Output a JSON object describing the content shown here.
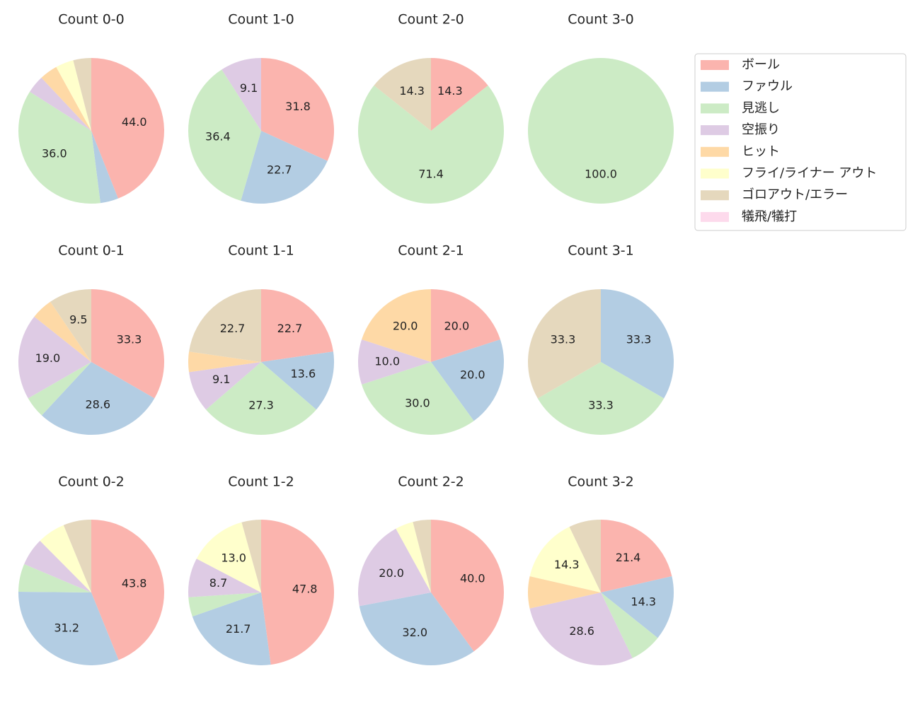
{
  "chart_data": [
    {
      "type": "pie",
      "title": "Count 0-0",
      "categories": [
        "ボール",
        "ファウル",
        "見逃し",
        "空振り",
        "ヒット",
        "フライ/ライナー アウト",
        "ゴロアウト/エラー",
        "犠飛/犠打"
      ],
      "colors": [
        "#fbb4ae",
        "#b3cde3",
        "#ccebc5",
        "#decbe4",
        "#fed9a6",
        "#ffffcc",
        "#e5d8bd",
        "#fddaec"
      ],
      "values": [
        44.0,
        4.0,
        36.0,
        4.0,
        4.0,
        4.0,
        4.0,
        0
      ],
      "value_labels": [
        "44.0",
        null,
        "36.0",
        null,
        null,
        null,
        null,
        null
      ]
    },
    {
      "type": "pie",
      "title": "Count 1-0",
      "categories": [
        "ボール",
        "ファウル",
        "見逃し",
        "空振り",
        "ヒット",
        "フライ/ライナー アウト",
        "ゴロアウト/エラー",
        "犠飛/犠打"
      ],
      "colors": [
        "#fbb4ae",
        "#b3cde3",
        "#ccebc5",
        "#decbe4",
        "#fed9a6",
        "#ffffcc",
        "#e5d8bd",
        "#fddaec"
      ],
      "values": [
        31.8,
        22.7,
        36.4,
        9.1,
        0,
        0,
        0,
        0
      ],
      "value_labels": [
        "31.8",
        "22.7",
        "36.4",
        "9.1",
        null,
        null,
        null,
        null
      ]
    },
    {
      "type": "pie",
      "title": "Count 2-0",
      "categories": [
        "ボール",
        "ファウル",
        "見逃し",
        "空振り",
        "ヒット",
        "フライ/ライナー アウト",
        "ゴロアウト/エラー",
        "犠飛/犠打"
      ],
      "colors": [
        "#fbb4ae",
        "#b3cde3",
        "#ccebc5",
        "#decbe4",
        "#fed9a6",
        "#ffffcc",
        "#e5d8bd",
        "#fddaec"
      ],
      "values": [
        14.3,
        0,
        71.4,
        0,
        0,
        0,
        14.3,
        0
      ],
      "value_labels": [
        "14.3",
        null,
        "71.4",
        null,
        null,
        null,
        "14.3",
        null
      ]
    },
    {
      "type": "pie",
      "title": "Count 3-0",
      "categories": [
        "ボール",
        "ファウル",
        "見逃し",
        "空振り",
        "ヒット",
        "フライ/ライナー アウト",
        "ゴロアウト/エラー",
        "犠飛/犠打"
      ],
      "colors": [
        "#fbb4ae",
        "#b3cde3",
        "#ccebc5",
        "#decbe4",
        "#fed9a6",
        "#ffffcc",
        "#e5d8bd",
        "#fddaec"
      ],
      "values": [
        0,
        0,
        100.0,
        0,
        0,
        0,
        0,
        0
      ],
      "value_labels": [
        null,
        null,
        "100.0",
        null,
        null,
        null,
        null,
        null
      ]
    },
    {
      "type": "pie",
      "title": "Count 0-1",
      "categories": [
        "ボール",
        "ファウル",
        "見逃し",
        "空振り",
        "ヒット",
        "フライ/ライナー アウト",
        "ゴロアウト/エラー",
        "犠飛/犠打"
      ],
      "colors": [
        "#fbb4ae",
        "#b3cde3",
        "#ccebc5",
        "#decbe4",
        "#fed9a6",
        "#ffffcc",
        "#e5d8bd",
        "#fddaec"
      ],
      "values": [
        33.3,
        28.6,
        4.8,
        19.0,
        4.8,
        0,
        9.5,
        0
      ],
      "value_labels": [
        "33.3",
        "28.6",
        null,
        "19.0",
        null,
        null,
        "9.5",
        null
      ]
    },
    {
      "type": "pie",
      "title": "Count 1-1",
      "categories": [
        "ボール",
        "ファウル",
        "見逃し",
        "空振り",
        "ヒット",
        "フライ/ライナー アウト",
        "ゴロアウト/エラー",
        "犠飛/犠打"
      ],
      "colors": [
        "#fbb4ae",
        "#b3cde3",
        "#ccebc5",
        "#decbe4",
        "#fed9a6",
        "#ffffcc",
        "#e5d8bd",
        "#fddaec"
      ],
      "values": [
        22.7,
        13.6,
        27.3,
        9.1,
        4.5,
        0,
        22.7,
        0
      ],
      "value_labels": [
        "22.7",
        "13.6",
        "27.3",
        "9.1",
        null,
        null,
        "22.7",
        null
      ]
    },
    {
      "type": "pie",
      "title": "Count 2-1",
      "categories": [
        "ボール",
        "ファウル",
        "見逃し",
        "空振り",
        "ヒット",
        "フライ/ライナー アウト",
        "ゴロアウト/エラー",
        "犠飛/犠打"
      ],
      "colors": [
        "#fbb4ae",
        "#b3cde3",
        "#ccebc5",
        "#decbe4",
        "#fed9a6",
        "#ffffcc",
        "#e5d8bd",
        "#fddaec"
      ],
      "values": [
        20.0,
        20.0,
        30.0,
        10.0,
        20.0,
        0,
        0,
        0
      ],
      "value_labels": [
        "20.0",
        "20.0",
        "30.0",
        "10.0",
        "20.0",
        null,
        null,
        null
      ]
    },
    {
      "type": "pie",
      "title": "Count 3-1",
      "categories": [
        "ボール",
        "ファウル",
        "見逃し",
        "空振り",
        "ヒット",
        "フライ/ライナー アウト",
        "ゴロアウト/エラー",
        "犠飛/犠打"
      ],
      "colors": [
        "#fbb4ae",
        "#b3cde3",
        "#ccebc5",
        "#decbe4",
        "#fed9a6",
        "#ffffcc",
        "#e5d8bd",
        "#fddaec"
      ],
      "values": [
        0,
        33.3,
        33.3,
        0,
        0,
        0,
        33.3,
        0
      ],
      "value_labels": [
        null,
        "33.3",
        "33.3",
        null,
        null,
        null,
        "33.3",
        null
      ]
    },
    {
      "type": "pie",
      "title": "Count 0-2",
      "categories": [
        "ボール",
        "ファウル",
        "見逃し",
        "空振り",
        "ヒット",
        "フライ/ライナー アウト",
        "ゴロアウト/エラー",
        "犠飛/犠打"
      ],
      "colors": [
        "#fbb4ae",
        "#b3cde3",
        "#ccebc5",
        "#decbe4",
        "#fed9a6",
        "#ffffcc",
        "#e5d8bd",
        "#fddaec"
      ],
      "values": [
        43.8,
        31.2,
        6.2,
        6.2,
        0,
        6.2,
        6.2,
        0
      ],
      "value_labels": [
        "43.8",
        "31.2",
        null,
        null,
        null,
        null,
        null,
        null
      ]
    },
    {
      "type": "pie",
      "title": "Count 1-2",
      "categories": [
        "ボール",
        "ファウル",
        "見逃し",
        "空振り",
        "ヒット",
        "フライ/ライナー アウト",
        "ゴロアウト/エラー",
        "犠飛/犠打"
      ],
      "colors": [
        "#fbb4ae",
        "#b3cde3",
        "#ccebc5",
        "#decbe4",
        "#fed9a6",
        "#ffffcc",
        "#e5d8bd",
        "#fddaec"
      ],
      "values": [
        47.8,
        21.7,
        4.3,
        8.7,
        0,
        13.0,
        4.3,
        0
      ],
      "value_labels": [
        "47.8",
        "21.7",
        null,
        "8.7",
        null,
        "13.0",
        null,
        null
      ]
    },
    {
      "type": "pie",
      "title": "Count 2-2",
      "categories": [
        "ボール",
        "ファウル",
        "見逃し",
        "空振り",
        "ヒット",
        "フライ/ライナー アウト",
        "ゴロアウト/エラー",
        "犠飛/犠打"
      ],
      "colors": [
        "#fbb4ae",
        "#b3cde3",
        "#ccebc5",
        "#decbe4",
        "#fed9a6",
        "#ffffcc",
        "#e5d8bd",
        "#fddaec"
      ],
      "values": [
        40.0,
        32.0,
        0,
        20.0,
        0,
        4.0,
        4.0,
        0
      ],
      "value_labels": [
        "40.0",
        "32.0",
        null,
        "20.0",
        null,
        null,
        null,
        null
      ]
    },
    {
      "type": "pie",
      "title": "Count 3-2",
      "categories": [
        "ボール",
        "ファウル",
        "見逃し",
        "空振り",
        "ヒット",
        "フライ/ライナー アウト",
        "ゴロアウト/エラー",
        "犠飛/犠打"
      ],
      "colors": [
        "#fbb4ae",
        "#b3cde3",
        "#ccebc5",
        "#decbe4",
        "#fed9a6",
        "#ffffcc",
        "#e5d8bd",
        "#fddaec"
      ],
      "values": [
        21.4,
        14.3,
        7.1,
        28.6,
        7.1,
        14.3,
        7.1,
        0
      ],
      "value_labels": [
        "21.4",
        "14.3",
        null,
        "28.6",
        null,
        "14.3",
        null,
        null
      ]
    }
  ]
}
